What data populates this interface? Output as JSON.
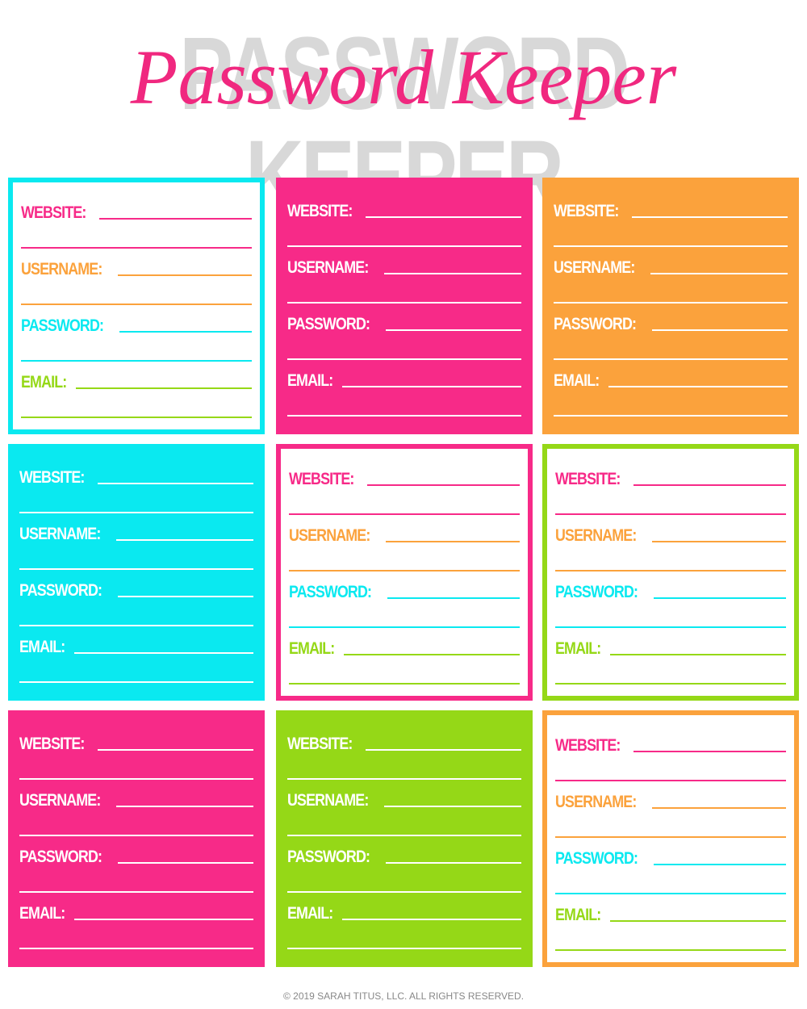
{
  "header": {
    "background_title": "PASSWORD KEEPER",
    "title": "Password Keeper"
  },
  "field_colors": [
    "#f72a88",
    "#fba23c",
    "#0ae9f0",
    "#95d817"
  ],
  "cards": [
    {
      "style": "outline",
      "color": "#0ae9f0",
      "fields": [
        "WEBSITE:",
        "USERNAME:",
        "PASSWORD:",
        "EMAIL:"
      ]
    },
    {
      "style": "fill",
      "color": "#f72a88",
      "fields": [
        "WEBSITE:",
        "USERNAME:",
        "PASSWORD:",
        "EMAIL:"
      ]
    },
    {
      "style": "fill",
      "color": "#fba23c",
      "fields": [
        "WEBSITE:",
        "USERNAME:",
        "PASSWORD:",
        "EMAIL:"
      ]
    },
    {
      "style": "fill",
      "color": "#0ae9f0",
      "fields": [
        "WEBSITE:",
        "USERNAME:",
        "PASSWORD:",
        "EMAIL:"
      ]
    },
    {
      "style": "outline",
      "color": "#f72a88",
      "fields": [
        "WEBSITE:",
        "USERNAME:",
        "PASSWORD:",
        "EMAIL:"
      ]
    },
    {
      "style": "outline",
      "color": "#95d817",
      "fields": [
        "WEBSITE:",
        "USERNAME:",
        "PASSWORD:",
        "EMAIL:"
      ]
    },
    {
      "style": "fill",
      "color": "#f72a88",
      "fields": [
        "WEBSITE:",
        "USERNAME:",
        "PASSWORD:",
        "EMAIL:"
      ]
    },
    {
      "style": "fill",
      "color": "#95d817",
      "fields": [
        "WEBSITE:",
        "USERNAME:",
        "PASSWORD:",
        "EMAIL:"
      ]
    },
    {
      "style": "outline",
      "color": "#fba23c",
      "fields": [
        "WEBSITE:",
        "USERNAME:",
        "PASSWORD:",
        "EMAIL:"
      ]
    }
  ],
  "footer": "© 2019 SARAH TITUS, LLC. ALL RIGHTS RESERVED."
}
